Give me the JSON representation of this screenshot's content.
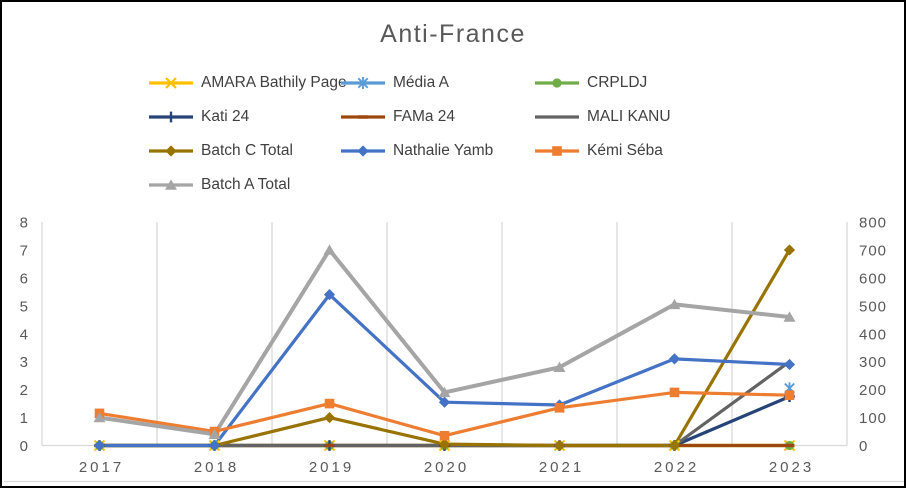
{
  "title": "Anti-France",
  "chart_data": {
    "type": "line",
    "title": "Anti-France",
    "categories": [
      "2017",
      "2018",
      "2019",
      "2020",
      "2021",
      "2022",
      "2023"
    ],
    "axes": {
      "left": {
        "min": 0,
        "max": 8,
        "step": 1
      },
      "right": {
        "min": 0,
        "max": 800,
        "step": 100
      }
    },
    "grid": {
      "vertical": true,
      "horizontal": false
    },
    "legend_position": "top-left, 3 columns",
    "note": "values recorded in left-axis units; right axis ticks are 100x left axis",
    "series": [
      {
        "name": "AMARA Bathily Page",
        "color": "#FFC000",
        "marker": "x",
        "values": [
          0,
          0,
          0,
          0,
          0,
          0,
          0
        ]
      },
      {
        "name": "Média A",
        "color": "#5B9BD5",
        "marker": "asterisk",
        "values": [
          null,
          null,
          null,
          null,
          null,
          null,
          2.05
        ]
      },
      {
        "name": "CRPLDJ",
        "color": "#70AD47",
        "marker": "circle",
        "values": [
          0,
          0,
          0,
          0,
          0,
          0,
          0
        ]
      },
      {
        "name": "Kati 24",
        "color": "#264478",
        "marker": "plus",
        "values": [
          0,
          0,
          0,
          0,
          0,
          0,
          1.75
        ]
      },
      {
        "name": "FAMa 24",
        "color": "#9E480E",
        "marker": "dash",
        "values": [
          0,
          0,
          0,
          0,
          0,
          0,
          0
        ]
      },
      {
        "name": "MALI KANU",
        "color": "#636363",
        "marker": "none",
        "values": [
          0,
          0,
          0,
          0,
          0,
          0,
          3
        ]
      },
      {
        "name": "Batch C Total",
        "color": "#997300",
        "marker": "diamond",
        "values": [
          0,
          0,
          1,
          0.05,
          0,
          0,
          7
        ]
      },
      {
        "name": "Nathalie Yamb",
        "color": "#4472C4",
        "marker": "diamond",
        "values": [
          0,
          0,
          5.4,
          1.55,
          1.45,
          3.1,
          2.9
        ]
      },
      {
        "name": "Kémi Séba",
        "color": "#ED7D31",
        "marker": "square",
        "values": [
          1.15,
          0.5,
          1.5,
          0.35,
          1.35,
          1.9,
          1.8
        ]
      },
      {
        "name": "Batch A Total",
        "color": "#A5A5A5",
        "marker": "triangle",
        "values": [
          1,
          0.4,
          7,
          1.9,
          2.8,
          5.05,
          4.6
        ]
      }
    ],
    "colors": {
      "gridline": "#D9D9D9",
      "axis_text": "#595959",
      "legend_text": "#404040",
      "title_text": "#595959"
    }
  }
}
